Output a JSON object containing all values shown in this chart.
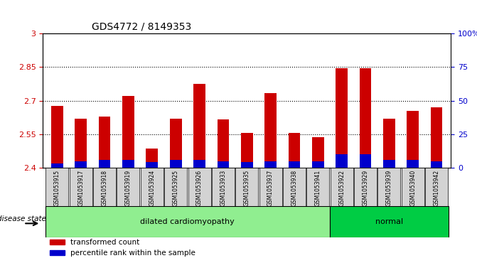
{
  "title": "GDS4772 / 8149353",
  "samples": [
    "GSM1053915",
    "GSM1053917",
    "GSM1053918",
    "GSM1053919",
    "GSM1053924",
    "GSM1053925",
    "GSM1053926",
    "GSM1053933",
    "GSM1053935",
    "GSM1053937",
    "GSM1053938",
    "GSM1053941",
    "GSM1053922",
    "GSM1053929",
    "GSM1053939",
    "GSM1053940",
    "GSM1053942"
  ],
  "transformed_count": [
    2.675,
    2.62,
    2.63,
    2.72,
    2.485,
    2.62,
    2.775,
    2.615,
    2.555,
    2.735,
    2.555,
    2.535,
    2.845,
    2.845,
    2.62,
    2.655,
    2.67
  ],
  "percentile_rank": [
    3,
    5,
    6,
    6,
    4,
    6,
    6,
    5,
    4,
    5,
    5,
    5,
    10,
    10,
    6,
    6,
    5
  ],
  "disease_groups": [
    {
      "label": "dilated cardiomyopathy",
      "start": 0,
      "end": 12,
      "color": "#90EE90"
    },
    {
      "label": "normal",
      "start": 12,
      "end": 17,
      "color": "#00CC44"
    }
  ],
  "ylim": [
    2.4,
    3.0
  ],
  "yticks": [
    2.4,
    2.55,
    2.7,
    2.85,
    3.0
  ],
  "ytick_labels": [
    "2.4",
    "2.55",
    "2.7",
    "2.85",
    "3"
  ],
  "y2lim": [
    0,
    100
  ],
  "y2ticks": [
    0,
    25,
    50,
    75,
    100
  ],
  "y2tick_labels": [
    "0",
    "25",
    "50",
    "75",
    "100%"
  ],
  "bar_bottom": 2.4,
  "red_color": "#CC0000",
  "blue_color": "#0000CC",
  "bar_width": 0.5,
  "background_color": "#ffffff",
  "tick_label_color_left": "#CC0000",
  "tick_label_color_right": "#0000CC",
  "grid_color": "#000000",
  "sample_bg_color": "#D3D3D3",
  "legend_red_label": "transformed count",
  "legend_blue_label": "percentile rank within the sample",
  "disease_state_label": "disease state"
}
